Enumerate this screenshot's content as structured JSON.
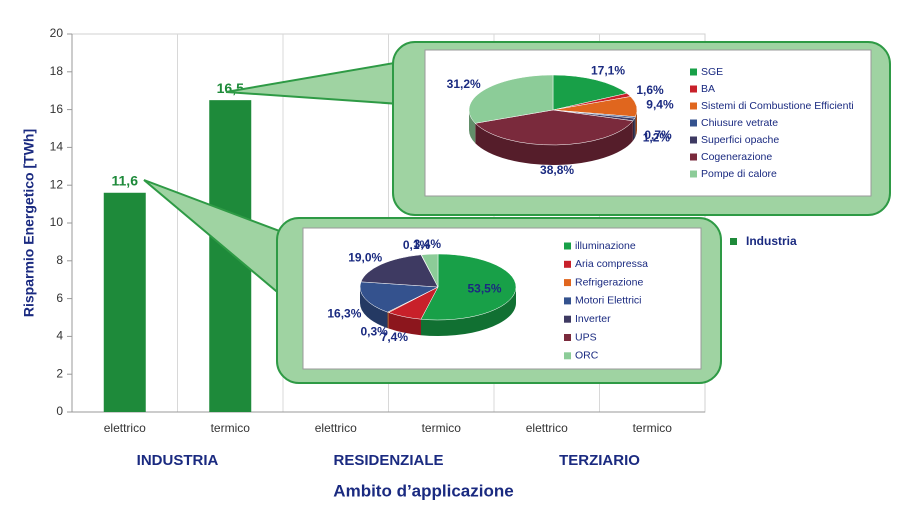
{
  "chart_data": [
    {
      "type": "bar",
      "title": "Ambito d’applicazione",
      "y_label": "Risparmio Energetico [TWh]",
      "categories": [
        "elettrico",
        "termico",
        "elettrico",
        "termico",
        "elettrico",
        "termico"
      ],
      "group_labels": [
        "INDUSTRIA",
        "RESIDENZIALE",
        "TERZIARIO"
      ],
      "series": [
        {
          "name": "Industria",
          "color": "#1e8a3a",
          "values": [
            11.6,
            16.5,
            null,
            null,
            null,
            null
          ],
          "value_labels": [
            "11,6",
            "16,5",
            null,
            null,
            null,
            null
          ]
        }
      ],
      "ylim": [
        0,
        20
      ],
      "yticks": [
        0,
        2,
        4,
        6,
        8,
        10,
        12,
        14,
        16,
        18,
        20
      ],
      "legend": "right"
    },
    {
      "type": "pie",
      "categories": [
        "SGE",
        "BA",
        "Sistemi di Combustione Efficienti",
        "Chiusure vetrate",
        "Superfici opache",
        "Cogenerazione",
        "Pompe di calore"
      ],
      "values": [
        17.1,
        1.6,
        9.4,
        0.7,
        1.2,
        38.8,
        31.2
      ],
      "value_labels": [
        "17,1%",
        "1,6%",
        "9,4%",
        "0,7%",
        "1,2%",
        "38,8%",
        "31,2%"
      ],
      "colors": [
        "#18a048",
        "#c8202a",
        "#e0661e",
        "#34528e",
        "#3e3a62",
        "#7a2a3c",
        "#8ccc98"
      ],
      "legend": "right"
    },
    {
      "type": "pie",
      "categories": [
        "illuminazione",
        "Aria compressa",
        "Refrigerazione",
        "Motori Elettrici",
        "Inverter",
        "UPS",
        "ORC"
      ],
      "values": [
        53.5,
        7.4,
        0.3,
        16.3,
        19.0,
        0.1,
        3.4
      ],
      "value_labels": [
        "53,5%",
        "7,4%",
        "0,3%",
        "16,3%",
        "19,0%",
        "0,1%",
        "3,4%"
      ],
      "colors": [
        "#18a048",
        "#c8202a",
        "#e0661e",
        "#34528e",
        "#3e3a62",
        "#7a2a3c",
        "#8ccc98"
      ],
      "legend": "right"
    }
  ]
}
